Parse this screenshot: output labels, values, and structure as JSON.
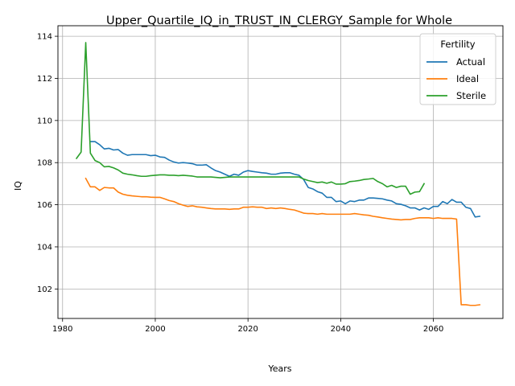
{
  "chart_data": {
    "type": "line",
    "title": "Upper_Quartile_IQ_in_TRUST_IN_CLERGY_Sample for Whole",
    "xlabel": "Years",
    "ylabel": "IQ",
    "xlim": [
      1979,
      2075
    ],
    "ylim": [
      100.6,
      114.5
    ],
    "xticks": [
      1980,
      2000,
      2020,
      2040,
      2060
    ],
    "yticks": [
      102,
      104,
      106,
      108,
      110,
      112,
      114
    ],
    "grid": true,
    "legend": {
      "title": "Fertility",
      "placement": "top-right"
    },
    "series": [
      {
        "name": "Actual",
        "color": "#1f77b4",
        "x": [
          1986,
          1987,
          1988,
          1989,
          1990,
          1991,
          1992,
          1993,
          1994,
          1995,
          1996,
          1997,
          1998,
          1999,
          2000,
          2001,
          2002,
          2003,
          2004,
          2005,
          2006,
          2007,
          2008,
          2009,
          2010,
          2011,
          2012,
          2013,
          2014,
          2015,
          2016,
          2017,
          2018,
          2019,
          2020,
          2021,
          2022,
          2023,
          2024,
          2025,
          2026,
          2027,
          2028,
          2029,
          2030,
          2031,
          2032,
          2033,
          2034,
          2035,
          2036,
          2037,
          2038,
          2039,
          2040,
          2041,
          2042,
          2043,
          2044,
          2045,
          2046,
          2047,
          2048,
          2049,
          2050,
          2051,
          2052,
          2053,
          2054,
          2055,
          2056,
          2057,
          2058,
          2059,
          2060,
          2061,
          2062,
          2063,
          2064,
          2065,
          2066,
          2067,
          2068,
          2069,
          2070
        ],
        "y": [
          109.0,
          109.0,
          108.85,
          108.65,
          108.68,
          108.6,
          108.62,
          108.45,
          108.35,
          108.38,
          108.38,
          108.38,
          108.38,
          108.33,
          108.35,
          108.27,
          108.25,
          108.12,
          108.03,
          107.98,
          108.0,
          107.98,
          107.95,
          107.88,
          107.88,
          107.9,
          107.75,
          107.62,
          107.55,
          107.45,
          107.35,
          107.45,
          107.4,
          107.55,
          107.62,
          107.58,
          107.55,
          107.52,
          107.5,
          107.45,
          107.45,
          107.5,
          107.52,
          107.52,
          107.45,
          107.4,
          107.2,
          106.82,
          106.75,
          106.62,
          106.55,
          106.35,
          106.35,
          106.15,
          106.18,
          106.05,
          106.18,
          106.15,
          106.22,
          106.22,
          106.32,
          106.32,
          106.3,
          106.28,
          106.22,
          106.18,
          106.05,
          106.02,
          105.95,
          105.85,
          105.85,
          105.75,
          105.85,
          105.78,
          105.92,
          105.92,
          106.15,
          106.05,
          106.25,
          106.12,
          106.12,
          105.88,
          105.82,
          105.42,
          105.45
        ]
      },
      {
        "name": "Ideal",
        "color": "#ff7f0e",
        "x": [
          1985,
          1986,
          1987,
          1988,
          1989,
          1990,
          1991,
          1992,
          1993,
          1994,
          1995,
          1996,
          1997,
          1998,
          1999,
          2000,
          2001,
          2002,
          2003,
          2004,
          2005,
          2006,
          2007,
          2008,
          2009,
          2010,
          2011,
          2012,
          2013,
          2014,
          2015,
          2016,
          2017,
          2018,
          2019,
          2020,
          2021,
          2022,
          2023,
          2024,
          2025,
          2026,
          2027,
          2028,
          2029,
          2030,
          2031,
          2032,
          2033,
          2034,
          2035,
          2036,
          2037,
          2038,
          2039,
          2040,
          2041,
          2042,
          2043,
          2044,
          2045,
          2046,
          2047,
          2048,
          2049,
          2050,
          2051,
          2052,
          2053,
          2054,
          2055,
          2056,
          2057,
          2058,
          2059,
          2060,
          2061,
          2062,
          2063,
          2064,
          2065,
          2066,
          2067,
          2068,
          2069,
          2070
        ],
        "y": [
          107.25,
          106.85,
          106.85,
          106.68,
          106.82,
          106.8,
          106.8,
          106.6,
          106.5,
          106.45,
          106.42,
          106.4,
          106.38,
          106.38,
          106.36,
          106.35,
          106.35,
          106.28,
          106.2,
          106.15,
          106.05,
          105.98,
          105.92,
          105.95,
          105.9,
          105.88,
          105.85,
          105.82,
          105.8,
          105.8,
          105.8,
          105.78,
          105.8,
          105.8,
          105.88,
          105.88,
          105.9,
          105.88,
          105.88,
          105.82,
          105.85,
          105.82,
          105.85,
          105.82,
          105.78,
          105.75,
          105.68,
          105.6,
          105.58,
          105.58,
          105.55,
          105.58,
          105.55,
          105.55,
          105.55,
          105.55,
          105.55,
          105.55,
          105.58,
          105.55,
          105.52,
          105.5,
          105.45,
          105.42,
          105.38,
          105.35,
          105.32,
          105.3,
          105.28,
          105.3,
          105.3,
          105.35,
          105.38,
          105.38,
          105.38,
          105.35,
          105.38,
          105.35,
          105.35,
          105.35,
          105.32,
          101.25,
          101.25,
          101.22,
          101.22,
          101.25
        ]
      },
      {
        "name": "Sterile",
        "color": "#2ca02c",
        "x": [
          1983,
          1984,
          1985,
          1986,
          1987,
          1988,
          1989,
          1990,
          1991,
          1992,
          1993,
          1994,
          1995,
          1996,
          1997,
          1998,
          1999,
          2000,
          2001,
          2002,
          2003,
          2004,
          2005,
          2006,
          2007,
          2008,
          2009,
          2010,
          2011,
          2012,
          2013,
          2014,
          2015,
          2016,
          2017,
          2018,
          2019,
          2020,
          2021,
          2022,
          2023,
          2024,
          2025,
          2026,
          2027,
          2028,
          2029,
          2030,
          2031,
          2032,
          2033,
          2034,
          2035,
          2036,
          2037,
          2038,
          2039,
          2040,
          2041,
          2042,
          2043,
          2044,
          2045,
          2046,
          2047,
          2048,
          2049,
          2050,
          2051,
          2052,
          2053,
          2054,
          2055,
          2056,
          2057,
          2058
        ],
        "y": [
          108.2,
          108.5,
          113.7,
          108.45,
          108.1,
          108.0,
          107.8,
          107.82,
          107.75,
          107.65,
          107.5,
          107.45,
          107.42,
          107.38,
          107.35,
          107.35,
          107.38,
          107.4,
          107.42,
          107.42,
          107.4,
          107.4,
          107.38,
          107.4,
          107.38,
          107.36,
          107.32,
          107.32,
          107.32,
          107.32,
          107.3,
          107.28,
          107.3,
          107.32,
          107.32,
          107.32,
          107.32,
          107.32,
          107.32,
          107.32,
          107.32,
          107.32,
          107.32,
          107.32,
          107.32,
          107.32,
          107.32,
          107.32,
          107.32,
          107.22,
          107.15,
          107.1,
          107.05,
          107.08,
          107.02,
          107.08,
          106.98,
          106.98,
          107.0,
          107.1,
          107.12,
          107.15,
          107.2,
          107.22,
          107.25,
          107.1,
          107.0,
          106.85,
          106.92,
          106.82,
          106.88,
          106.88,
          106.5,
          106.6,
          106.62,
          107.0
        ]
      }
    ]
  }
}
